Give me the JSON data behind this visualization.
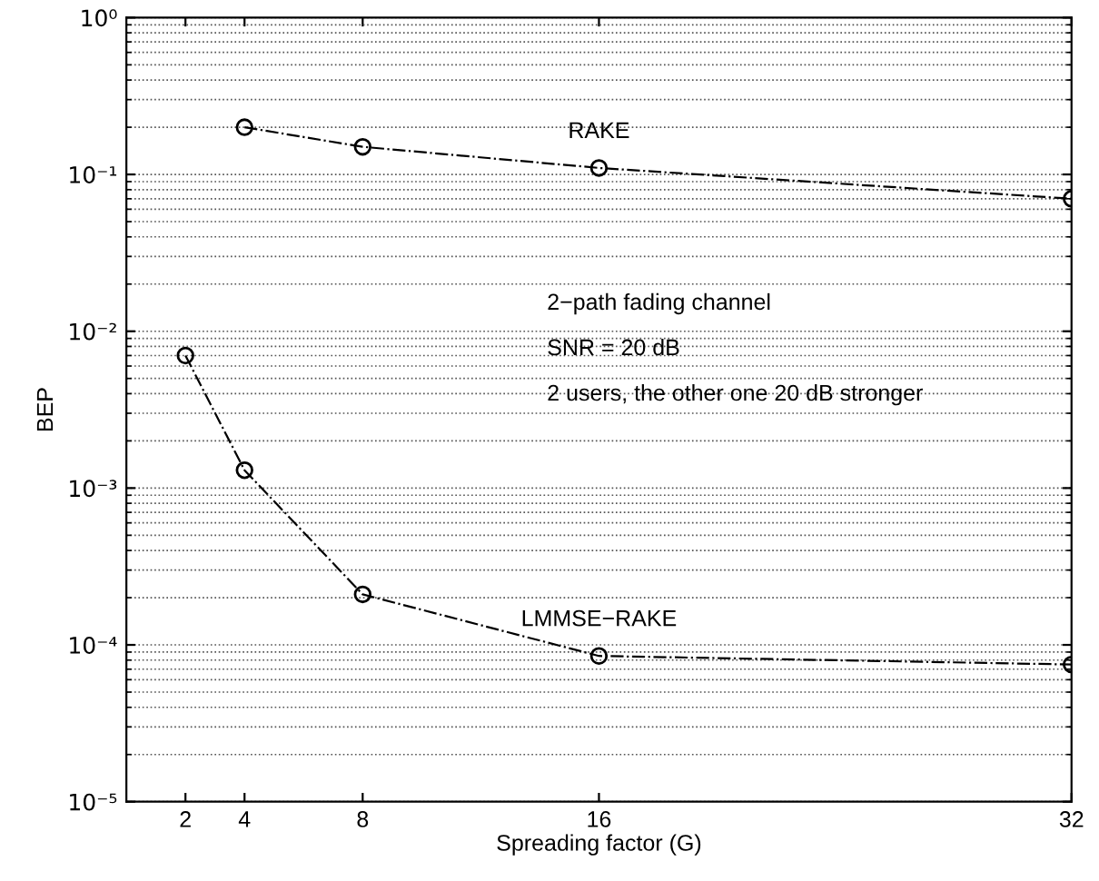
{
  "chart_data": {
    "type": "line",
    "xlabel": "Spreading factor (G)",
    "ylabel": "BEP",
    "log": "y",
    "grid": "y",
    "marker": "circle",
    "line_style": "dashdot",
    "xlim": [
      0,
      32
    ],
    "xticks": [
      2,
      4,
      8,
      16,
      32
    ],
    "ylim": [
      1e-05,
      1
    ],
    "yticks": [
      {
        "value": 1e-05,
        "label": "10⁻⁵"
      },
      {
        "value": 0.0001,
        "label": "10⁻⁴"
      },
      {
        "value": 0.001,
        "label": "10⁻³"
      },
      {
        "value": 0.01,
        "label": "10⁻²"
      },
      {
        "value": 0.1,
        "label": "10⁻¹"
      },
      {
        "value": 1,
        "label": "10⁰"
      }
    ],
    "series": [
      {
        "name": "RAKE",
        "color": "#000000",
        "x": [
          4,
          8,
          16,
          32
        ],
        "values": [
          0.2,
          0.15,
          0.11,
          0.07
        ]
      },
      {
        "name": "LMMSE−RAKE",
        "color": "#000000",
        "x": [
          2,
          4,
          8,
          16,
          32
        ],
        "values": [
          0.007,
          0.0013,
          0.00021,
          8.5e-05,
          7.5e-05
        ]
      }
    ],
    "annotations": [
      "2−path fading channel",
      "SNR = 20 dB",
      "2 users, the other one 20 dB stronger"
    ]
  }
}
